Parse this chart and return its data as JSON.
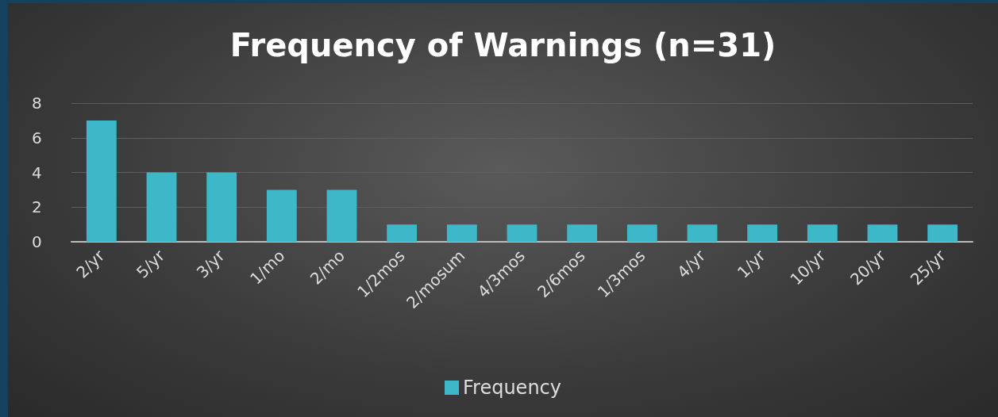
{
  "chart_data": {
    "type": "bar",
    "title": "Frequency of Warnings (n=31)",
    "categories": [
      "2/yr",
      "5/yr",
      "3/yr",
      "1/mo",
      "2/mo",
      "1/2mos",
      "2/mosum",
      "4/3mos",
      "2/6mos",
      "1/3mos",
      "4/yr",
      "1/yr",
      "10/yr",
      "20/yr",
      "25/yr"
    ],
    "series": [
      {
        "name": "Frequency",
        "color": "#3cb8c8",
        "values": [
          7,
          4,
          4,
          3,
          3,
          1,
          1,
          1,
          1,
          1,
          1,
          1,
          1,
          1,
          1
        ]
      }
    ],
    "ylim": [
      0,
      8
    ],
    "yticks": [
      0,
      2,
      4,
      6,
      8
    ],
    "grid": "y",
    "legend": "bottom"
  }
}
